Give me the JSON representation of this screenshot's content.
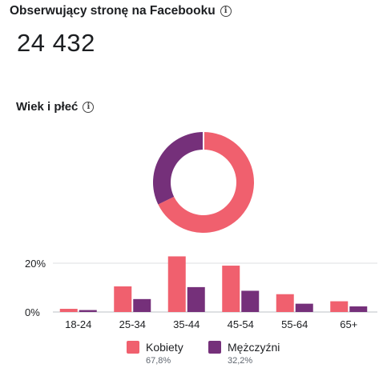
{
  "header": {
    "title": "Obserwujący stronę na Facebooku",
    "info_icon": "info-icon"
  },
  "followers": {
    "count": "24 432"
  },
  "section": {
    "title": "Wiek i płeć",
    "info_icon": "info-icon"
  },
  "colors": {
    "women": "#f0606e",
    "men": "#75307a",
    "grid": "#dddfe2",
    "axis": "#606770"
  },
  "chart_data": [
    {
      "type": "pie",
      "variant": "donut",
      "labels": [
        "Kobiety",
        "Mężczyźni"
      ],
      "values": [
        67.8,
        32.2
      ],
      "colors": [
        "#f0606e",
        "#75307a"
      ]
    },
    {
      "type": "bar",
      "categories": [
        "18-24",
        "25-34",
        "35-44",
        "45-54",
        "55-64",
        "65+"
      ],
      "series": [
        {
          "name": "Kobiety",
          "values": [
            1.3,
            10.5,
            22.8,
            19,
            7.3,
            4.4
          ]
        },
        {
          "name": "Mężczyźni",
          "values": [
            0.8,
            5.3,
            10.2,
            8.7,
            3.4,
            2.3
          ]
        }
      ],
      "ylim": [
        0,
        25
      ],
      "yticks": [
        {
          "value": 0,
          "label": "0%"
        },
        {
          "value": 20,
          "label": "20%"
        }
      ],
      "grid": true
    }
  ],
  "legend": {
    "women": {
      "label": "Kobiety",
      "percent": "67,8%"
    },
    "men": {
      "label": "Mężczyźni",
      "percent": "32,2%"
    }
  }
}
